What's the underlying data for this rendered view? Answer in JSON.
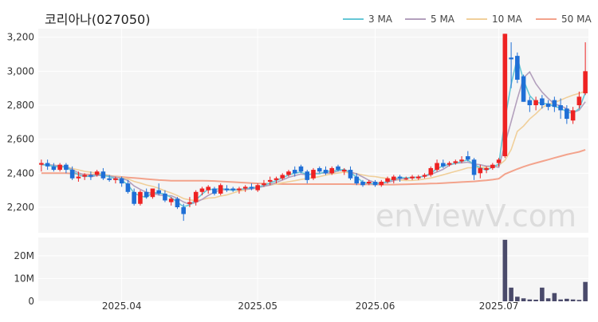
{
  "chart_data": [
    {
      "type": "candlestick",
      "title": "코리아나(027050)",
      "watermark": "enViewV.com",
      "legend": [
        {
          "label": "3 MA",
          "color": "#66c7d6"
        },
        {
          "label": "5 MA",
          "color": "#b3a0bd"
        },
        {
          "label": "10 MA",
          "color": "#f0cf9a"
        },
        {
          "label": "50 MA",
          "color": "#f3a38c"
        }
      ],
      "legend_position": "top-right",
      "colors": {
        "up": "#ee2222",
        "down": "#1f6fd6",
        "volume": "#4a4a6a"
      },
      "ylim": [
        2050,
        3250
      ],
      "yticks": [
        2200,
        2400,
        2600,
        2800,
        3000,
        3200
      ],
      "ytick_labels": [
        "2,200",
        "2,400",
        "2,600",
        "2,800",
        "3,000",
        "3,200"
      ],
      "grid": true,
      "candles": [
        [
          2450,
          2480,
          2410,
          2460
        ],
        [
          2460,
          2480,
          2420,
          2440
        ],
        [
          2440,
          2460,
          2410,
          2420
        ],
        [
          2420,
          2460,
          2410,
          2450
        ],
        [
          2450,
          2460,
          2400,
          2420
        ],
        [
          2420,
          2440,
          2360,
          2370
        ],
        [
          2370,
          2410,
          2350,
          2380
        ],
        [
          2380,
          2400,
          2360,
          2390
        ],
        [
          2390,
          2410,
          2360,
          2380
        ],
        [
          2390,
          2420,
          2380,
          2410
        ],
        [
          2410,
          2430,
          2360,
          2370
        ],
        [
          2370,
          2390,
          2350,
          2360
        ],
        [
          2360,
          2380,
          2340,
          2370
        ],
        [
          2370,
          2380,
          2320,
          2340
        ],
        [
          2340,
          2360,
          2280,
          2290
        ],
        [
          2290,
          2310,
          2210,
          2220
        ],
        [
          2220,
          2300,
          2210,
          2290
        ],
        [
          2290,
          2310,
          2250,
          2260
        ],
        [
          2260,
          2310,
          2250,
          2310
        ],
        [
          2300,
          2340,
          2270,
          2280
        ],
        [
          2280,
          2300,
          2230,
          2240
        ],
        [
          2230,
          2260,
          2210,
          2250
        ],
        [
          2250,
          2260,
          2190,
          2200
        ],
        [
          2200,
          2220,
          2120,
          2160
        ],
        [
          2220,
          2260,
          2200,
          2230
        ],
        [
          2230,
          2300,
          2210,
          2290
        ],
        [
          2290,
          2320,
          2270,
          2310
        ],
        [
          2300,
          2330,
          2280,
          2320
        ],
        [
          2310,
          2320,
          2270,
          2280
        ],
        [
          2280,
          2340,
          2270,
          2330
        ],
        [
          2310,
          2330,
          2290,
          2300
        ],
        [
          2310,
          2320,
          2290,
          2300
        ],
        [
          2300,
          2320,
          2280,
          2310
        ],
        [
          2310,
          2330,
          2290,
          2320
        ],
        [
          2320,
          2340,
          2300,
          2310
        ],
        [
          2300,
          2340,
          2290,
          2330
        ],
        [
          2330,
          2360,
          2320,
          2340
        ],
        [
          2350,
          2380,
          2330,
          2360
        ],
        [
          2360,
          2380,
          2340,
          2370
        ],
        [
          2370,
          2400,
          2360,
          2390
        ],
        [
          2390,
          2420,
          2380,
          2410
        ],
        [
          2420,
          2440,
          2380,
          2400
        ],
        [
          2440,
          2450,
          2400,
          2410
        ],
        [
          2410,
          2420,
          2340,
          2360
        ],
        [
          2370,
          2430,
          2360,
          2420
        ],
        [
          2430,
          2440,
          2400,
          2410
        ],
        [
          2420,
          2440,
          2390,
          2400
        ],
        [
          2400,
          2440,
          2390,
          2430
        ],
        [
          2440,
          2450,
          2410,
          2420
        ],
        [
          2410,
          2430,
          2390,
          2420
        ],
        [
          2420,
          2440,
          2360,
          2370
        ],
        [
          2380,
          2400,
          2330,
          2340
        ],
        [
          2350,
          2360,
          2320,
          2330
        ],
        [
          2340,
          2360,
          2330,
          2350
        ],
        [
          2350,
          2360,
          2320,
          2330
        ],
        [
          2330,
          2360,
          2320,
          2350
        ],
        [
          2350,
          2380,
          2340,
          2370
        ],
        [
          2360,
          2390,
          2340,
          2380
        ],
        [
          2380,
          2390,
          2350,
          2370
        ],
        [
          2370,
          2380,
          2360,
          2370
        ],
        [
          2370,
          2390,
          2360,
          2380
        ],
        [
          2370,
          2390,
          2360,
          2380
        ],
        [
          2380,
          2400,
          2370,
          2390
        ],
        [
          2390,
          2440,
          2380,
          2430
        ],
        [
          2420,
          2480,
          2410,
          2460
        ],
        [
          2460,
          2480,
          2430,
          2440
        ],
        [
          2450,
          2470,
          2440,
          2460
        ],
        [
          2460,
          2480,
          2450,
          2470
        ],
        [
          2470,
          2500,
          2460,
          2480
        ],
        [
          2500,
          2530,
          2470,
          2480
        ],
        [
          2480,
          2490,
          2360,
          2390
        ],
        [
          2400,
          2450,
          2370,
          2430
        ],
        [
          2420,
          2440,
          2400,
          2430
        ],
        [
          2430,
          2460,
          2420,
          2450
        ],
        [
          2460,
          2490,
          2440,
          2480
        ],
        [
          2500,
          3220,
          2490,
          3220
        ],
        [
          3080,
          3170,
          2900,
          3070
        ],
        [
          3090,
          3110,
          2930,
          2950
        ],
        [
          2970,
          2980,
          2820,
          2820
        ],
        [
          2830,
          2850,
          2760,
          2800
        ],
        [
          2800,
          2850,
          2770,
          2830
        ],
        [
          2840,
          2860,
          2780,
          2800
        ],
        [
          2810,
          2830,
          2770,
          2790
        ],
        [
          2830,
          2850,
          2760,
          2790
        ],
        [
          2800,
          2840,
          2720,
          2770
        ],
        [
          2780,
          2800,
          2690,
          2720
        ],
        [
          2710,
          2790,
          2690,
          2770
        ],
        [
          2800,
          2880,
          2780,
          2850
        ],
        [
          2870,
          3170,
          2860,
          3000
        ]
      ],
      "ma": {
        "ma3": [
          2450,
          2448,
          2440,
          2437,
          2437,
          2413,
          2390,
          2380,
          2383,
          2393,
          2387,
          2380,
          2367,
          2357,
          2333,
          2283,
          2267,
          2257,
          2287,
          2283,
          2277,
          2257,
          2230,
          2203,
          2213,
          2243,
          2277,
          2307,
          2303,
          2310,
          2303,
          2300,
          2303,
          2310,
          2313,
          2320,
          2327,
          2343,
          2357,
          2373,
          2390,
          2400,
          2407,
          2390,
          2397,
          2397,
          2410,
          2413,
          2417,
          2423,
          2403,
          2377,
          2347,
          2340,
          2337,
          2343,
          2350,
          2367,
          2373,
          2373,
          2373,
          2377,
          2383,
          2400,
          2427,
          2443,
          2453,
          2457,
          2470,
          2477,
          2450,
          2433,
          2417,
          2437,
          2453,
          2717,
          2923,
          3080,
          2947,
          2857,
          2817,
          2811,
          2807,
          2793,
          2783,
          2760,
          2753,
          2780,
          2873
        ],
        "ma5": [
          2450,
          2450,
          2447,
          2443,
          2438,
          2422,
          2402,
          2390,
          2378,
          2387,
          2388,
          2384,
          2377,
          2371,
          2357,
          2325,
          2305,
          2287,
          2283,
          2272,
          2268,
          2268,
          2252,
          2231,
          2217,
          2228,
          2246,
          2270,
          2288,
          2303,
          2304,
          2304,
          2306,
          2306,
          2307,
          2315,
          2323,
          2331,
          2346,
          2360,
          2376,
          2386,
          2395,
          2391,
          2398,
          2400,
          2402,
          2401,
          2414,
          2417,
          2408,
          2396,
          2378,
          2358,
          2345,
          2340,
          2346,
          2356,
          2366,
          2371,
          2375,
          2377,
          2382,
          2393,
          2407,
          2423,
          2447,
          2459,
          2461,
          2465,
          2454,
          2450,
          2442,
          2442,
          2435,
          2572,
          2704,
          2837,
          2961,
          2996,
          2926,
          2877,
          2840,
          2806,
          2797,
          2779,
          2757,
          2771,
          2820
        ],
        "ma10": [
          2450,
          2450,
          2447,
          2443,
          2438,
          2428,
          2420,
          2411,
          2406,
          2400,
          2395,
          2386,
          2380,
          2375,
          2367,
          2352,
          2342,
          2331,
          2323,
          2311,
          2296,
          2284,
          2269,
          2251,
          2243,
          2239,
          2245,
          2254,
          2256,
          2266,
          2272,
          2284,
          2295,
          2301,
          2312,
          2319,
          2325,
          2330,
          2337,
          2344,
          2350,
          2356,
          2363,
          2369,
          2374,
          2380,
          2389,
          2396,
          2401,
          2406,
          2402,
          2398,
          2390,
          2383,
          2380,
          2374,
          2369,
          2364,
          2359,
          2357,
          2358,
          2361,
          2366,
          2372,
          2381,
          2391,
          2401,
          2411,
          2421,
          2432,
          2432,
          2434,
          2436,
          2441,
          2446,
          2476,
          2539,
          2646,
          2677,
          2719,
          2750,
          2786,
          2806,
          2816,
          2830,
          2846,
          2859,
          2870,
          2882
        ],
        "ma50": [
          2400,
          2400,
          2400,
          2400,
          2400,
          2398,
          2396,
          2394,
          2392,
          2390,
          2387,
          2384,
          2381,
          2378,
          2375,
          2372,
          2369,
          2366,
          2363,
          2360,
          2358,
          2356,
          2356,
          2356,
          2356,
          2356,
          2356,
          2355,
          2354,
          2352,
          2350,
          2348,
          2346,
          2344,
          2342,
          2340,
          2339,
          2338,
          2337,
          2336,
          2336,
          2336,
          2336,
          2336,
          2336,
          2336,
          2336,
          2336,
          2336,
          2336,
          2336,
          2335,
          2335,
          2334,
          2334,
          2333,
          2333,
          2333,
          2334,
          2335,
          2336,
          2337,
          2338,
          2339,
          2340,
          2342,
          2344,
          2346,
          2348,
          2350,
          2352,
          2355,
          2358,
          2362,
          2368,
          2395,
          2410,
          2425,
          2438,
          2450,
          2460,
          2470,
          2480,
          2490,
          2500,
          2510,
          2518,
          2526,
          2538
        ]
      },
      "x_labels": [
        {
          "label": "2025.04",
          "index": 13
        },
        {
          "label": "2025.05",
          "index": 35
        },
        {
          "label": "2025.06",
          "index": 54
        },
        {
          "label": "2025.07",
          "index": 74
        }
      ]
    },
    {
      "type": "bar",
      "ylim": [
        0,
        28000000
      ],
      "yticks": [
        0,
        10000000,
        20000000
      ],
      "ytick_labels": [
        "0",
        "10M",
        "20M"
      ],
      "grid": true,
      "values": [
        0,
        0,
        0,
        0,
        0,
        0,
        0,
        0,
        0,
        0,
        0,
        0,
        0,
        0,
        0,
        0,
        0,
        0,
        0,
        0,
        0,
        0,
        0,
        0,
        0,
        0,
        0,
        0,
        0,
        0,
        0,
        0,
        0,
        0,
        0,
        0,
        0,
        0,
        0,
        0,
        0,
        0,
        0,
        0,
        0,
        0,
        0,
        0,
        0,
        0,
        0,
        0,
        0,
        0,
        0,
        0,
        0,
        0,
        0,
        0,
        0,
        0,
        0,
        0,
        0,
        0,
        0,
        0,
        0,
        0,
        0,
        0,
        0,
        0,
        0,
        27000000,
        6000000,
        2000000,
        1300000,
        800000,
        700000,
        6000000,
        1300000,
        3600000,
        800000,
        1100000,
        800000,
        600000,
        8500000
      ]
    }
  ]
}
